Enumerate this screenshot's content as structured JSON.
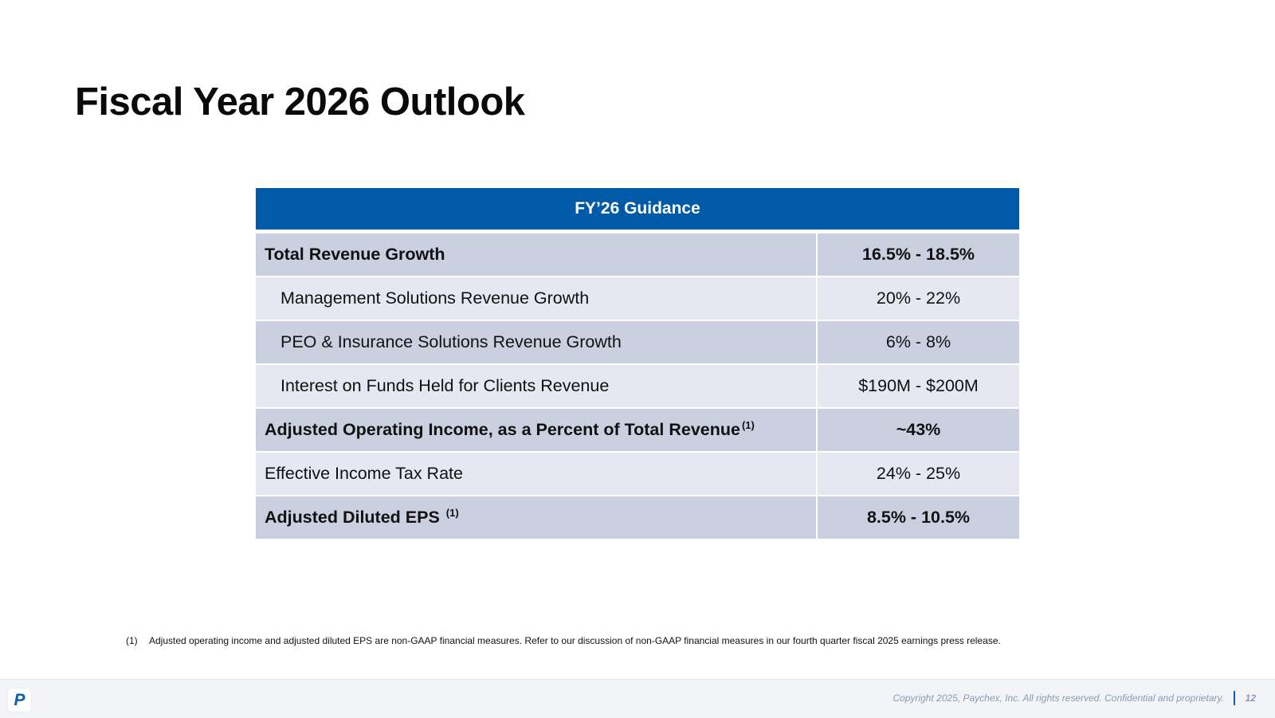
{
  "slide": {
    "title": "Fiscal Year 2026 Outlook"
  },
  "table": {
    "header": "FY’26 Guidance",
    "rows": [
      {
        "label": "Total Revenue Growth",
        "value": "16.5% - 18.5%"
      },
      {
        "label": "Management Solutions Revenue Growth",
        "value": "20% - 22%"
      },
      {
        "label": "PEO & Insurance Solutions Revenue Growth",
        "value": "6% - 8%"
      },
      {
        "label": "Interest on Funds Held for Clients Revenue",
        "value": "$190M - $200M"
      },
      {
        "label": "Adjusted Operating Income, as a Percent of Total Revenue",
        "note": "(1)",
        "value": "~43%"
      },
      {
        "label": "Effective Income Tax Rate",
        "value": "24% - 25%"
      },
      {
        "label": "Adjusted Diluted EPS",
        "note": "(1)",
        "value": "8.5% - 10.5%"
      }
    ]
  },
  "footnote": {
    "marker": "(1)",
    "text": "Adjusted operating income and adjusted diluted EPS are non-GAAP financial measures. Refer to our discussion of non-GAAP financial measures in our fourth quarter fiscal 2025 earnings press release."
  },
  "footer": {
    "logo_letter": "P",
    "copyright": "Copyright 2025, Paychex, Inc. All rights reserved. Confidential and proprietary.",
    "page_number": "12"
  },
  "colors": {
    "header_blue": "#005aa7",
    "row_dark": "#cbd0e0",
    "row_light": "#e5e8f1",
    "footer_text": "#8a9ab5"
  }
}
